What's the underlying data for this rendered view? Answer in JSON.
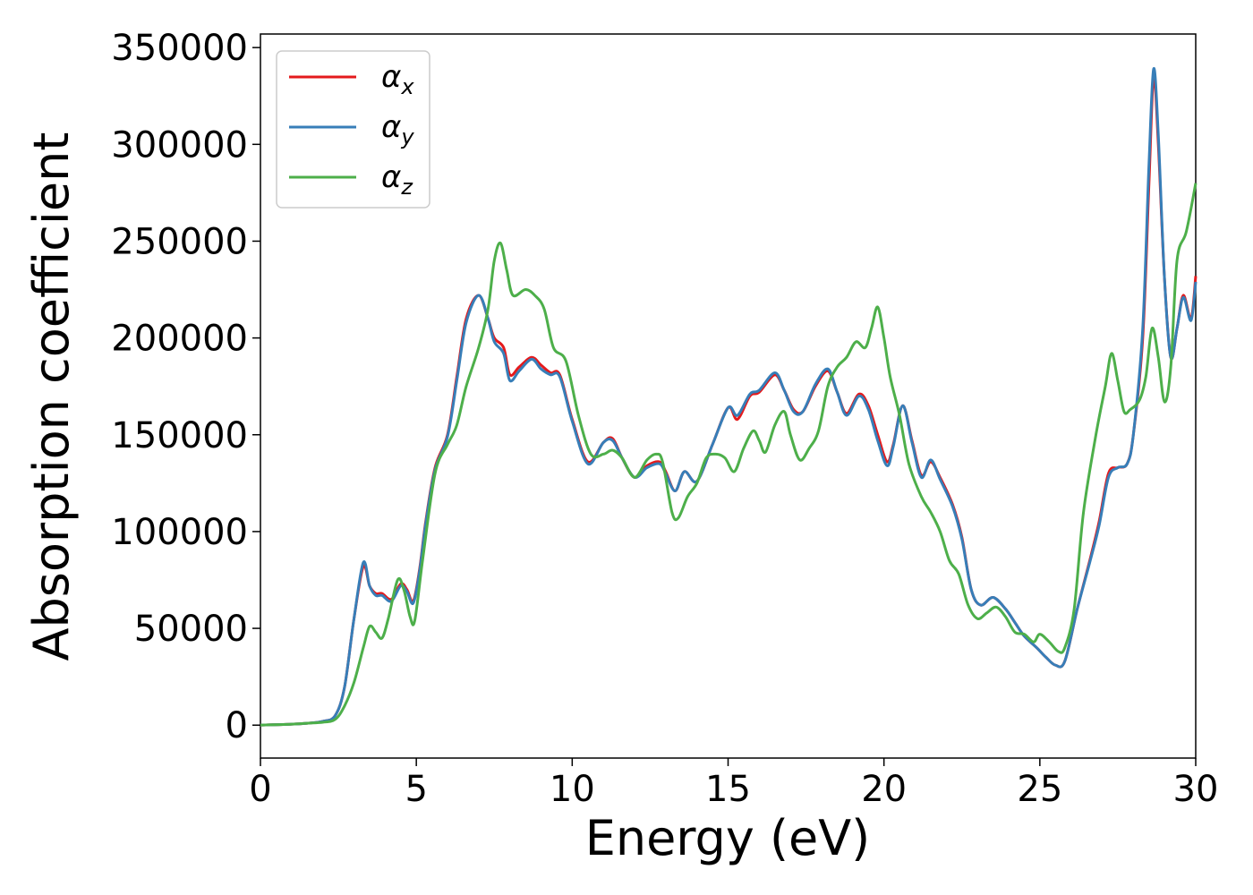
{
  "chart_data": {
    "type": "line",
    "title": "",
    "xlabel": "Energy (eV)",
    "ylabel": "Absorption coefficient",
    "xlim": [
      0,
      30
    ],
    "ylim": [
      -17000,
      357000
    ],
    "xticks": [
      0,
      5,
      10,
      15,
      20,
      25,
      30
    ],
    "xtick_labels": [
      "0",
      "5",
      "10",
      "15",
      "20",
      "25",
      "30"
    ],
    "yticks": [
      0,
      50000,
      100000,
      150000,
      200000,
      250000,
      300000,
      350000
    ],
    "ytick_labels": [
      "0",
      "50000",
      "100000",
      "150000",
      "200000",
      "250000",
      "300000",
      "350000"
    ],
    "grid": false,
    "legend_position": "top-left",
    "series": [
      {
        "name": "αx",
        "symbol": "α",
        "subscript": "x",
        "color": "#e41a1c",
        "points": [
          [
            0,
            0
          ],
          [
            1,
            500
          ],
          [
            1.5,
            1000
          ],
          [
            2,
            2000
          ],
          [
            2.4,
            5000
          ],
          [
            2.7,
            20000
          ],
          [
            3.0,
            55000
          ],
          [
            3.3,
            82000
          ],
          [
            3.5,
            72000
          ],
          [
            3.7,
            68000
          ],
          [
            3.9,
            68000
          ],
          [
            4.2,
            65000
          ],
          [
            4.5,
            73000
          ],
          [
            4.7,
            70000
          ],
          [
            4.9,
            64000
          ],
          [
            5.1,
            80000
          ],
          [
            5.3,
            105000
          ],
          [
            5.6,
            133000
          ],
          [
            6.0,
            150000
          ],
          [
            6.3,
            180000
          ],
          [
            6.6,
            210000
          ],
          [
            7.0,
            222000
          ],
          [
            7.3,
            210000
          ],
          [
            7.5,
            200000
          ],
          [
            7.8,
            195000
          ],
          [
            8.0,
            181000
          ],
          [
            8.3,
            185000
          ],
          [
            8.7,
            190000
          ],
          [
            9.0,
            186000
          ],
          [
            9.3,
            182000
          ],
          [
            9.6,
            181000
          ],
          [
            10.0,
            158000
          ],
          [
            10.5,
            136000
          ],
          [
            11.0,
            146000
          ],
          [
            11.3,
            148000
          ],
          [
            11.6,
            138000
          ],
          [
            12.0,
            128000
          ],
          [
            12.4,
            134000
          ],
          [
            12.8,
            136000
          ],
          [
            13.0,
            131000
          ],
          [
            13.3,
            121000
          ],
          [
            13.6,
            131000
          ],
          [
            14.0,
            126000
          ],
          [
            14.5,
            145000
          ],
          [
            15.0,
            164000
          ],
          [
            15.3,
            158000
          ],
          [
            15.7,
            170000
          ],
          [
            16.0,
            172000
          ],
          [
            16.5,
            181000
          ],
          [
            16.8,
            173000
          ],
          [
            17.1,
            163000
          ],
          [
            17.4,
            162000
          ],
          [
            17.8,
            175000
          ],
          [
            18.2,
            183000
          ],
          [
            18.5,
            172000
          ],
          [
            18.8,
            161000
          ],
          [
            19.2,
            171000
          ],
          [
            19.5,
            165000
          ],
          [
            19.8,
            150000
          ],
          [
            20.1,
            136000
          ],
          [
            20.3,
            145000
          ],
          [
            20.6,
            165000
          ],
          [
            20.9,
            147000
          ],
          [
            21.2,
            129000
          ],
          [
            21.5,
            136000
          ],
          [
            21.8,
            128000
          ],
          [
            22.2,
            114000
          ],
          [
            22.5,
            97000
          ],
          [
            22.8,
            70000
          ],
          [
            23.1,
            62000
          ],
          [
            23.5,
            66000
          ],
          [
            23.9,
            60000
          ],
          [
            24.2,
            53000
          ],
          [
            24.5,
            46000
          ],
          [
            24.9,
            40000
          ],
          [
            25.2,
            35000
          ],
          [
            25.5,
            31000
          ],
          [
            25.8,
            33000
          ],
          [
            26.2,
            60000
          ],
          [
            26.6,
            85000
          ],
          [
            26.9,
            105000
          ],
          [
            27.2,
            130000
          ],
          [
            27.5,
            133000
          ],
          [
            27.8,
            135000
          ],
          [
            28.0,
            150000
          ],
          [
            28.3,
            200000
          ],
          [
            28.5,
            280000
          ],
          [
            28.65,
            335000
          ],
          [
            28.8,
            300000
          ],
          [
            29.0,
            230000
          ],
          [
            29.2,
            190000
          ],
          [
            29.4,
            205000
          ],
          [
            29.6,
            222000
          ],
          [
            29.85,
            210000
          ],
          [
            30,
            232000
          ]
        ]
      },
      {
        "name": "αy",
        "symbol": "α",
        "subscript": "y",
        "color": "#377eb8",
        "points": [
          [
            0,
            0
          ],
          [
            1,
            500
          ],
          [
            1.5,
            1000
          ],
          [
            2,
            2000
          ],
          [
            2.4,
            5000
          ],
          [
            2.7,
            20000
          ],
          [
            3.0,
            55000
          ],
          [
            3.3,
            84000
          ],
          [
            3.5,
            72000
          ],
          [
            3.7,
            67000
          ],
          [
            3.9,
            67000
          ],
          [
            4.2,
            64000
          ],
          [
            4.5,
            72000
          ],
          [
            4.7,
            69000
          ],
          [
            4.9,
            63000
          ],
          [
            5.1,
            79000
          ],
          [
            5.3,
            104000
          ],
          [
            5.6,
            132000
          ],
          [
            6.0,
            149000
          ],
          [
            6.3,
            178000
          ],
          [
            6.6,
            208000
          ],
          [
            7.0,
            222000
          ],
          [
            7.3,
            210000
          ],
          [
            7.5,
            198000
          ],
          [
            7.8,
            192000
          ],
          [
            8.0,
            178000
          ],
          [
            8.3,
            183000
          ],
          [
            8.7,
            189000
          ],
          [
            9.0,
            184000
          ],
          [
            9.3,
            181000
          ],
          [
            9.6,
            180000
          ],
          [
            10.0,
            157000
          ],
          [
            10.5,
            135000
          ],
          [
            11.0,
            146000
          ],
          [
            11.3,
            147000
          ],
          [
            11.6,
            138000
          ],
          [
            12.0,
            128000
          ],
          [
            12.4,
            133000
          ],
          [
            12.8,
            135000
          ],
          [
            13.0,
            130000
          ],
          [
            13.3,
            121000
          ],
          [
            13.6,
            131000
          ],
          [
            14.0,
            126000
          ],
          [
            14.5,
            145000
          ],
          [
            15.0,
            164000
          ],
          [
            15.3,
            160000
          ],
          [
            15.7,
            171000
          ],
          [
            16.0,
            173000
          ],
          [
            16.5,
            182000
          ],
          [
            16.8,
            173000
          ],
          [
            17.1,
            162000
          ],
          [
            17.4,
            162000
          ],
          [
            17.8,
            176000
          ],
          [
            18.2,
            184000
          ],
          [
            18.5,
            172000
          ],
          [
            18.8,
            160000
          ],
          [
            19.2,
            170000
          ],
          [
            19.5,
            163000
          ],
          [
            19.8,
            147000
          ],
          [
            20.1,
            134000
          ],
          [
            20.3,
            144000
          ],
          [
            20.6,
            165000
          ],
          [
            20.9,
            146000
          ],
          [
            21.2,
            128000
          ],
          [
            21.5,
            137000
          ],
          [
            21.8,
            127000
          ],
          [
            22.2,
            113000
          ],
          [
            22.5,
            96000
          ],
          [
            22.8,
            70000
          ],
          [
            23.1,
            62000
          ],
          [
            23.5,
            66000
          ],
          [
            23.9,
            60000
          ],
          [
            24.2,
            53000
          ],
          [
            24.5,
            46000
          ],
          [
            24.9,
            40000
          ],
          [
            25.2,
            35000
          ],
          [
            25.5,
            31000
          ],
          [
            25.8,
            33000
          ],
          [
            26.2,
            60000
          ],
          [
            26.6,
            84000
          ],
          [
            26.9,
            103000
          ],
          [
            27.2,
            128000
          ],
          [
            27.5,
            133000
          ],
          [
            27.8,
            135000
          ],
          [
            28.0,
            150000
          ],
          [
            28.3,
            205000
          ],
          [
            28.5,
            290000
          ],
          [
            28.65,
            339000
          ],
          [
            28.8,
            305000
          ],
          [
            29.0,
            230000
          ],
          [
            29.2,
            190000
          ],
          [
            29.4,
            205000
          ],
          [
            29.6,
            221000
          ],
          [
            29.85,
            209000
          ],
          [
            30,
            229000
          ]
        ]
      },
      {
        "name": "αz",
        "symbol": "α",
        "subscript": "z",
        "color": "#4daf4a",
        "points": [
          [
            0,
            0
          ],
          [
            1,
            500
          ],
          [
            1.5,
            1000
          ],
          [
            2,
            1500
          ],
          [
            2.4,
            3000
          ],
          [
            2.7,
            10000
          ],
          [
            3.0,
            22000
          ],
          [
            3.3,
            40000
          ],
          [
            3.5,
            51000
          ],
          [
            3.7,
            48000
          ],
          [
            3.9,
            45000
          ],
          [
            4.1,
            55000
          ],
          [
            4.4,
            75000
          ],
          [
            4.6,
            70000
          ],
          [
            4.8,
            56000
          ],
          [
            4.95,
            54000
          ],
          [
            5.2,
            85000
          ],
          [
            5.6,
            130000
          ],
          [
            6.0,
            145000
          ],
          [
            6.3,
            155000
          ],
          [
            6.6,
            175000
          ],
          [
            7.0,
            195000
          ],
          [
            7.3,
            215000
          ],
          [
            7.5,
            240000
          ],
          [
            7.7,
            249000
          ],
          [
            7.9,
            235000
          ],
          [
            8.1,
            222000
          ],
          [
            8.5,
            225000
          ],
          [
            8.8,
            222000
          ],
          [
            9.1,
            215000
          ],
          [
            9.4,
            195000
          ],
          [
            9.8,
            188000
          ],
          [
            10.2,
            160000
          ],
          [
            10.6,
            140000
          ],
          [
            11.0,
            140000
          ],
          [
            11.3,
            142000
          ],
          [
            11.6,
            138000
          ],
          [
            12.0,
            128000
          ],
          [
            12.4,
            137000
          ],
          [
            12.7,
            140000
          ],
          [
            12.9,
            136000
          ],
          [
            13.2,
            110000
          ],
          [
            13.4,
            107000
          ],
          [
            13.7,
            118000
          ],
          [
            14.0,
            125000
          ],
          [
            14.3,
            138000
          ],
          [
            14.6,
            140000
          ],
          [
            14.9,
            138000
          ],
          [
            15.2,
            131000
          ],
          [
            15.5,
            143000
          ],
          [
            15.8,
            152000
          ],
          [
            16.0,
            147000
          ],
          [
            16.2,
            141000
          ],
          [
            16.5,
            155000
          ],
          [
            16.8,
            162000
          ],
          [
            17.0,
            150000
          ],
          [
            17.3,
            137000
          ],
          [
            17.6,
            143000
          ],
          [
            17.9,
            152000
          ],
          [
            18.2,
            175000
          ],
          [
            18.5,
            185000
          ],
          [
            18.8,
            190000
          ],
          [
            19.1,
            198000
          ],
          [
            19.4,
            195000
          ],
          [
            19.6,
            205000
          ],
          [
            19.8,
            216000
          ],
          [
            20.0,
            200000
          ],
          [
            20.2,
            180000
          ],
          [
            20.5,
            160000
          ],
          [
            20.8,
            135000
          ],
          [
            21.2,
            118000
          ],
          [
            21.5,
            110000
          ],
          [
            21.8,
            100000
          ],
          [
            22.1,
            85000
          ],
          [
            22.4,
            78000
          ],
          [
            22.7,
            62000
          ],
          [
            23.0,
            55000
          ],
          [
            23.3,
            58000
          ],
          [
            23.6,
            61000
          ],
          [
            23.9,
            56000
          ],
          [
            24.2,
            48000
          ],
          [
            24.5,
            47000
          ],
          [
            24.8,
            43000
          ],
          [
            25.0,
            47000
          ],
          [
            25.3,
            43000
          ],
          [
            25.6,
            38000
          ],
          [
            25.8,
            40000
          ],
          [
            26.1,
            60000
          ],
          [
            26.4,
            110000
          ],
          [
            26.8,
            150000
          ],
          [
            27.1,
            175000
          ],
          [
            27.3,
            192000
          ],
          [
            27.5,
            178000
          ],
          [
            27.7,
            162000
          ],
          [
            27.9,
            163000
          ],
          [
            28.2,
            168000
          ],
          [
            28.4,
            180000
          ],
          [
            28.6,
            205000
          ],
          [
            28.8,
            190000
          ],
          [
            29.0,
            167000
          ],
          [
            29.2,
            185000
          ],
          [
            29.4,
            240000
          ],
          [
            29.7,
            255000
          ],
          [
            30,
            280000
          ]
        ]
      }
    ]
  }
}
